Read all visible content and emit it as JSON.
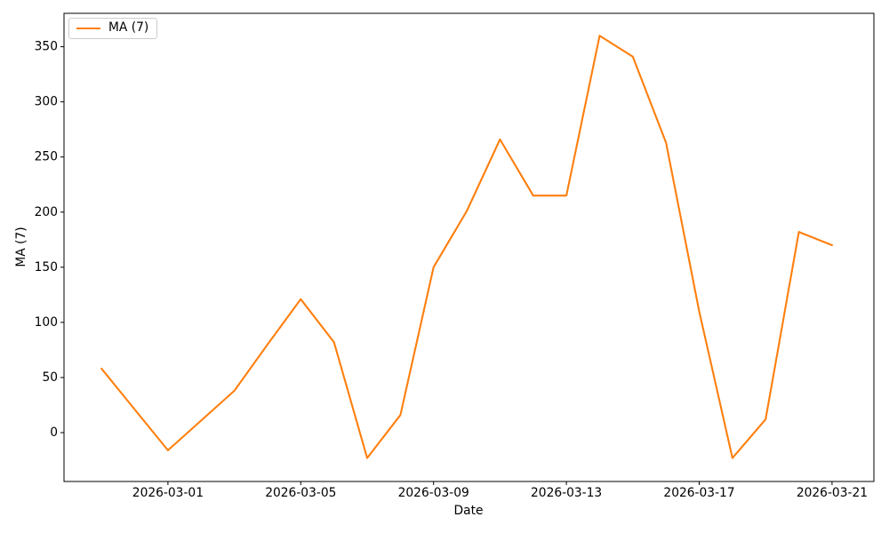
{
  "chart_data": {
    "type": "line",
    "title": "",
    "xlabel": "Date",
    "ylabel": "MA (7)",
    "grid": false,
    "background_color": "#ffffff",
    "axis_color": "#000000",
    "legend": {
      "position": "upper left",
      "entries": [
        {
          "label": "MA (7)",
          "color": "#ff7f0e"
        }
      ]
    },
    "series": [
      {
        "name": "MA (7)",
        "color": "#ff7f0e",
        "x": [
          "2026-02-27",
          "2026-02-28",
          "2026-03-01",
          "2026-03-02",
          "2026-03-03",
          "2026-03-04",
          "2026-03-05",
          "2026-03-06",
          "2026-03-07",
          "2026-03-08",
          "2026-03-09",
          "2026-03-10",
          "2026-03-11",
          "2026-03-12",
          "2026-03-13",
          "2026-03-14",
          "2026-03-15",
          "2026-03-16",
          "2026-03-17",
          "2026-03-18",
          "2026-03-19",
          "2026-03-20",
          "2026-03-21"
        ],
        "values": [
          58,
          21,
          -16,
          11,
          38,
          80,
          121,
          82,
          -23,
          16,
          150,
          201,
          266,
          215,
          215,
          360,
          341,
          263,
          110,
          -23,
          12,
          182,
          170
        ]
      }
    ],
    "xticks": [
      "2026-03-01",
      "2026-03-05",
      "2026-03-09",
      "2026-03-13",
      "2026-03-17",
      "2026-03-21"
    ],
    "yticks": [
      0,
      50,
      100,
      150,
      200,
      250,
      300,
      350
    ],
    "xlim": [
      "2026-02-25T20:53:00Z",
      "2026-03-22T06:15:00Z"
    ],
    "ylim": [
      -44.3,
      380.3
    ]
  }
}
